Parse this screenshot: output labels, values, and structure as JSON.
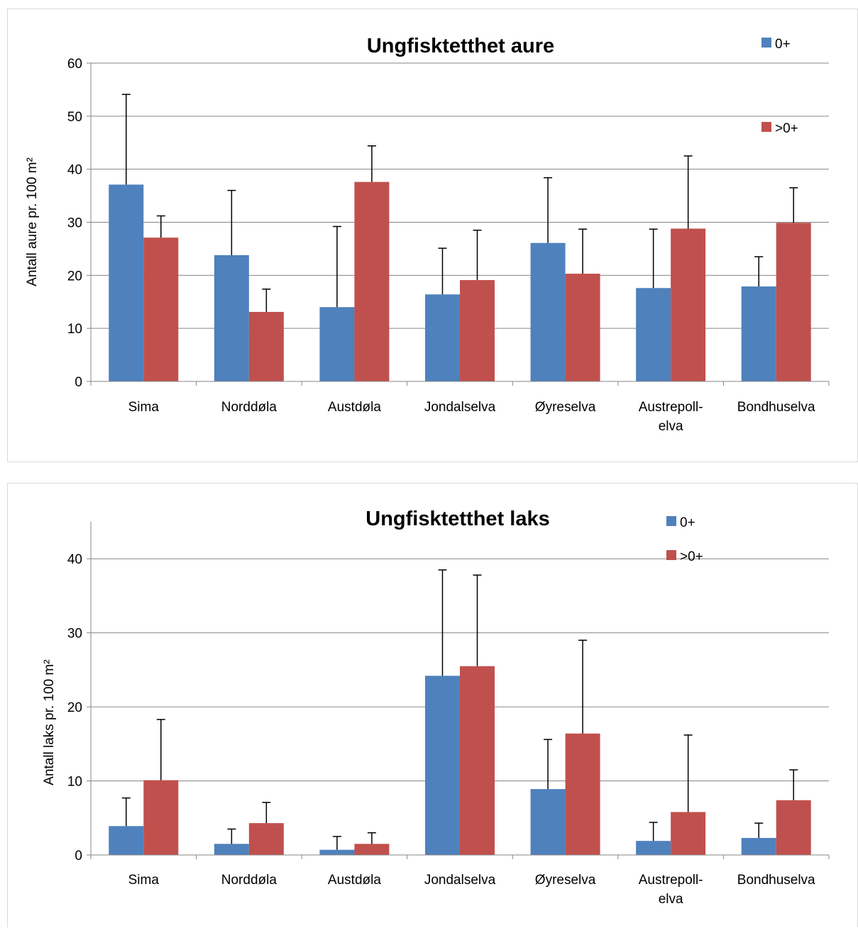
{
  "chart_data": [
    {
      "type": "bar",
      "title": "Ungfisktetthet aure",
      "ylabel": "Antall aure pr. 100 m²",
      "xlabel": "",
      "ylim": [
        0,
        60
      ],
      "yticks": [
        0,
        10,
        20,
        30,
        40,
        50,
        60
      ],
      "grid": true,
      "error_bars": true,
      "legend_position": "top-right",
      "categories": [
        "Sima",
        "Norddøla",
        "Austdøla",
        "Jondalselva",
        "Øyreselva",
        [
          "Austrepoll-",
          "elva"
        ],
        "Bondhuselva"
      ],
      "series": [
        {
          "name": "0+",
          "color": "#4f81bd",
          "values": [
            37.1,
            23.8,
            14.0,
            16.4,
            26.1,
            17.6,
            17.9
          ],
          "errors": [
            17.0,
            12.2,
            15.2,
            8.7,
            12.3,
            11.1,
            5.6
          ]
        },
        {
          "name": ">0+",
          "color": "#c0504d",
          "values": [
            27.1,
            13.1,
            37.6,
            19.1,
            20.3,
            28.8,
            29.9
          ],
          "errors": [
            4.1,
            4.3,
            6.8,
            9.4,
            8.4,
            13.7,
            6.6
          ]
        }
      ]
    },
    {
      "type": "bar",
      "title": "Ungfisktetthet laks",
      "ylabel": "Antall laks pr. 100 m²",
      "xlabel": "",
      "ylim": [
        0,
        45
      ],
      "yticks": [
        0,
        10,
        20,
        30,
        40
      ],
      "grid": true,
      "error_bars": true,
      "legend_position": "top-right",
      "categories": [
        "Sima",
        "Norddøla",
        "Austdøla",
        "Jondalselva",
        "Øyreselva",
        [
          "Austrepoll-",
          "elva"
        ],
        "Bondhuselva"
      ],
      "series": [
        {
          "name": "0+",
          "color": "#4f81bd",
          "values": [
            3.9,
            1.5,
            0.7,
            24.2,
            8.9,
            1.9,
            2.3
          ],
          "errors": [
            3.8,
            2.0,
            1.8,
            14.3,
            6.7,
            2.5,
            2.0
          ]
        },
        {
          "name": ">0+",
          "color": "#c0504d",
          "values": [
            10.1,
            4.3,
            1.5,
            25.5,
            16.4,
            5.8,
            7.4
          ],
          "errors": [
            8.2,
            2.8,
            1.5,
            12.3,
            12.6,
            10.4,
            4.1
          ]
        }
      ]
    }
  ]
}
